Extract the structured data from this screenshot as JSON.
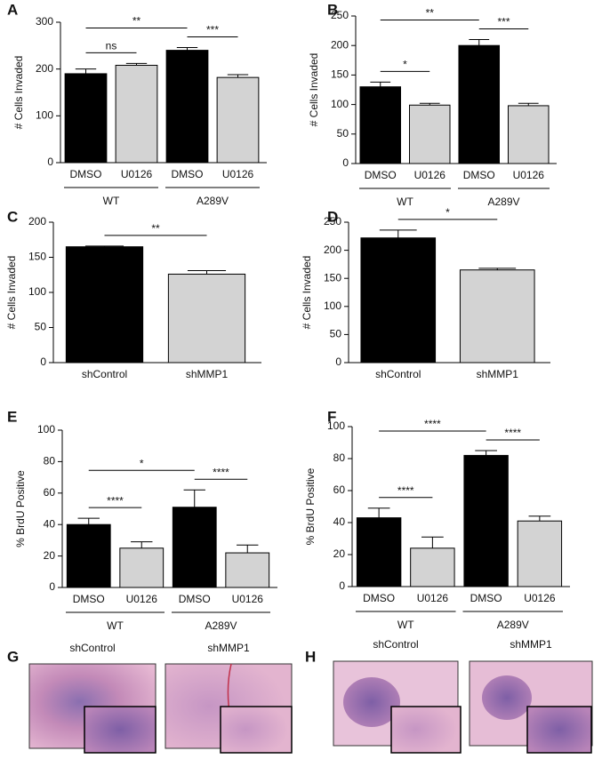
{
  "chart_data": [
    {
      "type": "bar",
      "panel": "A",
      "ylabel": "# Cells Invaded",
      "categories": [
        "DMSO",
        "U0126",
        "DMSO",
        "U0126"
      ],
      "groups": [
        "WT",
        "A289V"
      ],
      "values": [
        190,
        208,
        240,
        182
      ],
      "errors": [
        10,
        4,
        6,
        6
      ],
      "colors": [
        "#000000",
        "#d3d3d3",
        "#000000",
        "#d3d3d3"
      ],
      "ylim": [
        0,
        300
      ],
      "yticks": [
        0,
        100,
        200,
        300
      ],
      "annotations": [
        {
          "label": "ns",
          "from": 0,
          "to": 1
        },
        {
          "label": "**",
          "from": 0,
          "to": 2
        },
        {
          "label": "***",
          "from": 2,
          "to": 3
        }
      ]
    },
    {
      "type": "bar",
      "panel": "B",
      "ylabel": "# Cells Invaded",
      "categories": [
        "DMSO",
        "U0126",
        "DMSO",
        "U0126"
      ],
      "groups": [
        "WT",
        "A289V"
      ],
      "values": [
        130,
        99,
        200,
        98
      ],
      "errors": [
        8,
        3,
        10,
        4
      ],
      "colors": [
        "#000000",
        "#d3d3d3",
        "#000000",
        "#d3d3d3"
      ],
      "ylim": [
        0,
        250
      ],
      "yticks": [
        0,
        50,
        100,
        150,
        200,
        250
      ],
      "annotations": [
        {
          "label": "*",
          "from": 0,
          "to": 1
        },
        {
          "label": "**",
          "from": 0,
          "to": 2
        },
        {
          "label": "***",
          "from": 2,
          "to": 3
        }
      ]
    },
    {
      "type": "bar",
      "panel": "C",
      "ylabel": "# Cells Invaded",
      "categories": [
        "shControl",
        "shMMP1"
      ],
      "values": [
        165,
        126
      ],
      "errors": [
        1,
        5
      ],
      "colors": [
        "#000000",
        "#d3d3d3"
      ],
      "ylim": [
        0,
        200
      ],
      "yticks": [
        0,
        50,
        100,
        150,
        200
      ],
      "annotations": [
        {
          "label": "**",
          "from": 0,
          "to": 1
        }
      ]
    },
    {
      "type": "bar",
      "panel": "D",
      "ylabel": "# Cells Invaded",
      "categories": [
        "shControl",
        "shMMP1"
      ],
      "values": [
        222,
        165
      ],
      "errors": [
        14,
        3
      ],
      "colors": [
        "#000000",
        "#d3d3d3"
      ],
      "ylim": [
        0,
        250
      ],
      "yticks": [
        0,
        50,
        100,
        150,
        200,
        250
      ],
      "annotations": [
        {
          "label": "*",
          "from": 0,
          "to": 1
        }
      ]
    },
    {
      "type": "bar",
      "panel": "E",
      "ylabel": "% BrdU Positive",
      "categories": [
        "DMSO",
        "U0126",
        "DMSO",
        "U0126"
      ],
      "groups": [
        "WT",
        "A289V"
      ],
      "values": [
        40,
        25,
        51,
        22
      ],
      "errors": [
        4,
        4,
        11,
        5
      ],
      "colors": [
        "#000000",
        "#d3d3d3",
        "#000000",
        "#d3d3d3"
      ],
      "ylim": [
        0,
        100
      ],
      "yticks": [
        0,
        20,
        40,
        60,
        80,
        100
      ],
      "annotations": [
        {
          "label": "****",
          "from": 0,
          "to": 1
        },
        {
          "label": "*",
          "from": 0,
          "to": 2
        },
        {
          "label": "****",
          "from": 2,
          "to": 3
        }
      ]
    },
    {
      "type": "bar",
      "panel": "F",
      "ylabel": "% BrdU Positive",
      "categories": [
        "DMSO",
        "U0126",
        "DMSO",
        "U0126"
      ],
      "groups": [
        "WT",
        "A289V"
      ],
      "values": [
        43,
        24,
        82,
        41
      ],
      "errors": [
        6,
        7,
        3,
        3
      ],
      "colors": [
        "#000000",
        "#d3d3d3",
        "#000000",
        "#d3d3d3"
      ],
      "ylim": [
        0,
        100
      ],
      "yticks": [
        0,
        20,
        40,
        60,
        80,
        100
      ],
      "annotations": [
        {
          "label": "****",
          "from": 0,
          "to": 1
        },
        {
          "label": "****",
          "from": 0,
          "to": 2
        },
        {
          "label": "****",
          "from": 2,
          "to": 3
        }
      ]
    }
  ],
  "images": [
    {
      "panel": "G",
      "labels": [
        "shControl",
        "shMMP1"
      ]
    },
    {
      "panel": "H",
      "labels": [
        "shControl",
        "shMMP1"
      ]
    }
  ]
}
